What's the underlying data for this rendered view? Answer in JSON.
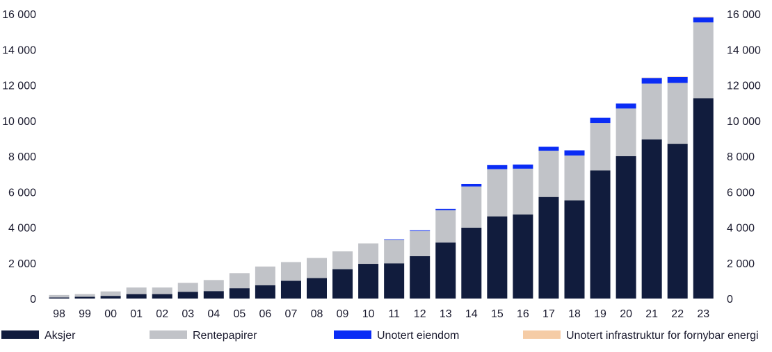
{
  "chart_data": {
    "type": "bar",
    "stacked": true,
    "categories": [
      "98",
      "99",
      "00",
      "01",
      "02",
      "03",
      "04",
      "05",
      "06",
      "07",
      "08",
      "09",
      "10",
      "11",
      "12",
      "13",
      "14",
      "15",
      "16",
      "17",
      "18",
      "19",
      "20",
      "21",
      "22",
      "23"
    ],
    "series": [
      {
        "name": "Aksjer",
        "color": "#111c3d",
        "values": [
          60,
          100,
          150,
          250,
          250,
          380,
          420,
          580,
          750,
          1000,
          1150,
          1650,
          1950,
          1980,
          2380,
          3150,
          3980,
          4620,
          4730,
          5710,
          5520,
          7200,
          8000,
          8950,
          8700,
          11260
        ]
      },
      {
        "name": "Rentepapirer",
        "color": "#c1c3c8",
        "values": [
          140,
          150,
          250,
          370,
          370,
          500,
          620,
          850,
          1050,
          1050,
          1130,
          1000,
          1150,
          1320,
          1420,
          1820,
          2320,
          2650,
          2570,
          2600,
          2520,
          2670,
          2680,
          3130,
          3420,
          4260
        ]
      },
      {
        "name": "Unotert eiendom",
        "color": "#0a2cf5",
        "values": [
          0,
          0,
          0,
          0,
          0,
          0,
          0,
          0,
          0,
          0,
          0,
          0,
          0,
          30,
          40,
          70,
          140,
          230,
          230,
          220,
          290,
          290,
          280,
          320,
          330,
          280
        ]
      },
      {
        "name": "Unotert infrastruktur for fornybar energi",
        "color": "#f5cca6",
        "values": [
          0,
          0,
          0,
          0,
          0,
          0,
          0,
          0,
          0,
          0,
          0,
          0,
          0,
          0,
          0,
          0,
          0,
          0,
          0,
          0,
          0,
          0,
          0,
          20,
          30,
          40
        ]
      }
    ],
    "y_ticks": [
      "0",
      "2 000",
      "4 000",
      "6 000",
      "8 000",
      "10 000",
      "12 000",
      "14 000",
      "16 000"
    ],
    "ylim": [
      0,
      16000
    ],
    "y_axis_both_sides": true,
    "grid": false,
    "legend_position": "bottom"
  }
}
